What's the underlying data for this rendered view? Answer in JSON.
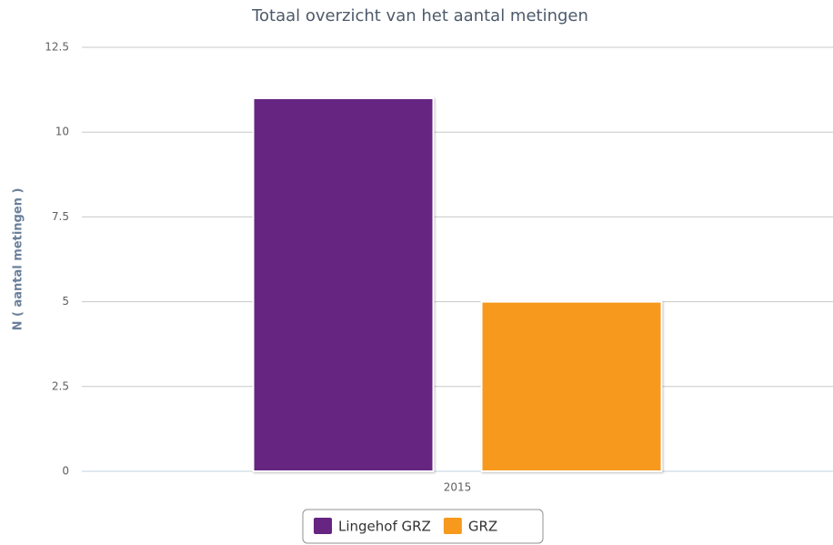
{
  "chart_data": {
    "type": "bar",
    "title": "Totaal overzicht van het aantal metingen",
    "y_label": "N ( aantal metingen )",
    "categories": [
      "2015"
    ],
    "series": [
      {
        "name": "Lingehof GRZ",
        "color": "#652581",
        "values": [
          11
        ]
      },
      {
        "name": "GRZ",
        "color": "#f7991d",
        "values": [
          5
        ]
      }
    ],
    "ylim": [
      0,
      12.5
    ],
    "yticks": [
      0,
      2.5,
      5,
      7.5,
      10,
      12.5
    ],
    "grid": true,
    "legend": "bottom"
  }
}
